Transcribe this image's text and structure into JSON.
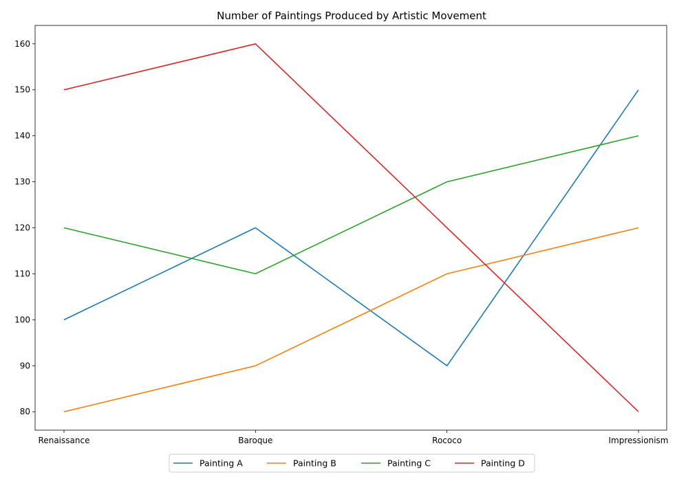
{
  "chart_data": {
    "type": "line",
    "title": "Number of Paintings Produced by Artistic Movement",
    "xlabel": "",
    "ylabel": "",
    "categories": [
      "Renaissance",
      "Baroque",
      "Rococo",
      "Impressionism"
    ],
    "ylim": [
      76,
      164
    ],
    "yticks": [
      80,
      90,
      100,
      110,
      120,
      130,
      140,
      150,
      160
    ],
    "grid": false,
    "legend_position": "bottom-center",
    "series": [
      {
        "name": "Painting A",
        "color": "#1f77b4",
        "values": [
          100,
          120,
          90,
          150
        ]
      },
      {
        "name": "Painting B",
        "color": "#ff7f0e",
        "values": [
          80,
          90,
          110,
          120
        ]
      },
      {
        "name": "Painting C",
        "color": "#2ca02c",
        "values": [
          120,
          110,
          130,
          140
        ]
      },
      {
        "name": "Painting D",
        "color": "#d62728",
        "values": [
          150,
          160,
          120,
          80
        ]
      }
    ]
  }
}
